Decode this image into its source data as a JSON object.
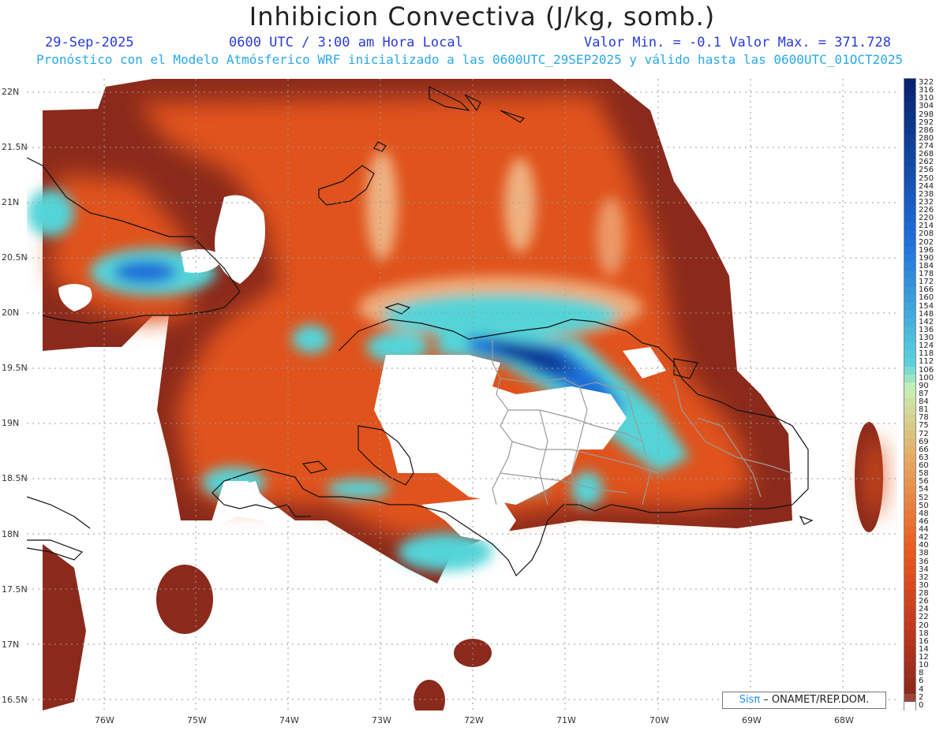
{
  "title": "Inhibicion Convectiva (J/kg, somb.)",
  "header": {
    "date": "29-Sep-2025",
    "time": "0600 UTC / 3:00 am Hora Local",
    "minmax": "Valor Min. = -0.1  Valor Max. = 371.728",
    "forecast": "Pronóstico con el Modelo Atmósferico WRF inicializado a las 0600UTC_29SEP2025 y válido hasta las  0600UTC_01OCT2025"
  },
  "latitude_labels": [
    "22N",
    "21.5N",
    "21N",
    "20.5N",
    "20N",
    "19.5N",
    "19N",
    "18.5N",
    "18N",
    "17.5N",
    "17N",
    "16.5N"
  ],
  "longitude_labels": [
    "76W",
    "75W",
    "74W",
    "73W",
    "72W",
    "71W",
    "70W",
    "69W",
    "68W"
  ],
  "colorbar": {
    "labels": [
      "322",
      "316",
      "310",
      "304",
      "298",
      "292",
      "286",
      "280",
      "274",
      "268",
      "262",
      "256",
      "250",
      "244",
      "238",
      "232",
      "226",
      "220",
      "214",
      "208",
      "202",
      "196",
      "190",
      "184",
      "178",
      "172",
      "166",
      "160",
      "154",
      "148",
      "142",
      "136",
      "130",
      "124",
      "118",
      "112",
      "106",
      "100",
      "90",
      "87",
      "84",
      "81",
      "78",
      "75",
      "72",
      "69",
      "66",
      "63",
      "60",
      "58",
      "56",
      "54",
      "52",
      "50",
      "48",
      "46",
      "44",
      "42",
      "40",
      "38",
      "36",
      "34",
      "32",
      "30",
      "28",
      "26",
      "24",
      "22",
      "20",
      "18",
      "16",
      "14",
      "12",
      "10",
      "8",
      "6",
      "4",
      "2",
      "0"
    ]
  },
  "credit": {
    "brand": "Sisπ",
    "text": " – ONAMET/REP.DOM."
  },
  "colors": {
    "background_field": "#8b2a1c",
    "mid_field": "#e0521a",
    "light_field": "#f3c89a",
    "high_field": "#0b3c99",
    "cyan_field": "#55d4d8"
  }
}
